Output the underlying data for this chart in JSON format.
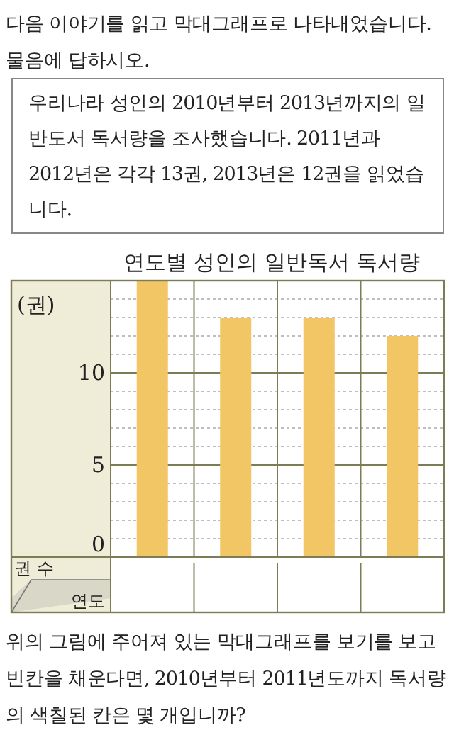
{
  "chart_data": {
    "type": "bar",
    "title": "연도별 성인의 일반독서 독서량",
    "ylabel": "(권)",
    "categories": [
      null,
      null,
      null,
      null
    ],
    "values": [
      15,
      13,
      13,
      12
    ],
    "color": "#f2c664",
    "ylim": [
      0,
      15
    ],
    "yticks": [
      0,
      {
        "value": 1,
        "label": null
      },
      {
        "value": 2,
        "label": null
      },
      {
        "value": 3,
        "label": null
      },
      {
        "value": 4,
        "label": null
      },
      5,
      {
        "value": 6,
        "label": null
      },
      {
        "value": 7,
        "label": null
      },
      {
        "value": 8,
        "label": null
      },
      {
        "value": 9,
        "label": null
      },
      10,
      {
        "value": 11,
        "label": null
      },
      {
        "value": 12,
        "label": null
      },
      {
        "value": 13,
        "label": null
      },
      {
        "value": 14,
        "label": null
      }
    ],
    "grid": true,
    "annotations": [
      "다음 이야기를 읽고 막대그래프로 나타내었습니다. 물음에 답하시오.",
      "우리나라 성인의 2010년부터 2013년까지의 일반도서 독서량을 조사했습니다. 2011년과 2012년은 각각 13권, 2013년은 12권을 읽었습니다.",
      "권 수",
      "연도",
      "위의 그림에 주어져 있는 막대그래프를 보기를 보고 빈칸을 채운다면, 2010년부터 2011년도까지 독서량의 색칠된 칸은 몇 개입니까?"
    ]
  }
}
